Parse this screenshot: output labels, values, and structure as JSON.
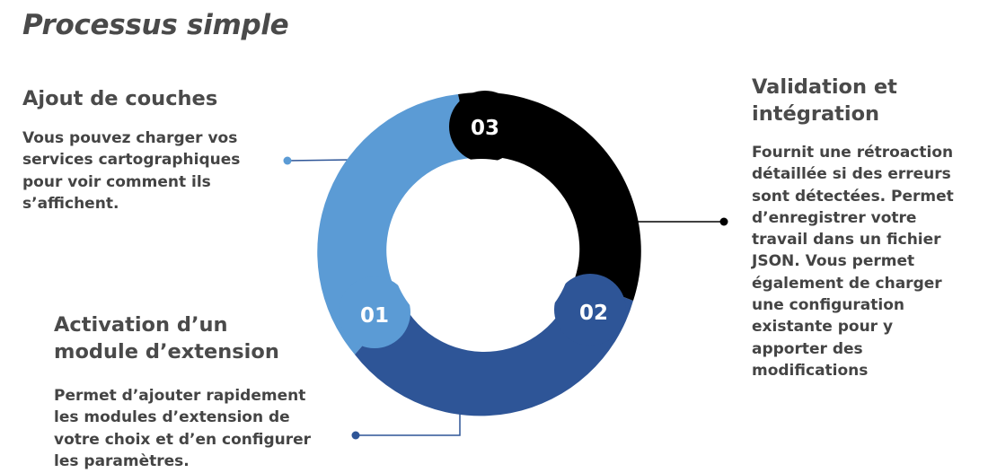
{
  "title": "Processus simple",
  "steps": [
    {
      "number": "01",
      "heading": "Ajout de couches",
      "body": "Vous pouvez charger vos\nservices cartographiques\npour voir comment ils\ns’affichent.",
      "color": "#5b9bd5"
    },
    {
      "number": "02",
      "heading": "Activation d’un\nmodule d’extension",
      "body": "Permet d’ajouter rapidement\nles modules d’extension de\nvotre choix et d’en configurer\nles paramètres.",
      "color": "#2e5597"
    },
    {
      "number": "03",
      "heading": "Validation et\nintégration",
      "body": "Fournit une rétroaction\ndétaillée si des erreurs\nsont détectées. Permet\nd’enregistrer votre\ntravail dans un fichier\nJSON. Vous permet\négalement de charger\nune configuration\nexistante pour y\napporter des\nmodifications",
      "color": "#000000"
    }
  ],
  "connector_color": "#2e5597"
}
